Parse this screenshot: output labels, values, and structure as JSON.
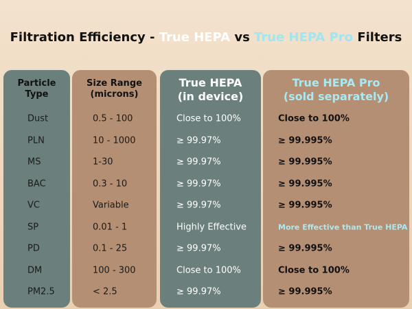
{
  "title": {
    "parts": [
      "Filtration Efficiency - ",
      "True HEPA",
      " vs ",
      "True HEPA Pro",
      " Filters"
    ]
  },
  "table": {
    "headers": [
      [
        "Particle",
        "Type"
      ],
      [
        "Size Range",
        "(microns)"
      ],
      [
        "True HEPA",
        "(in device)"
      ],
      [
        "True HEPA Pro",
        "(sold separately)"
      ]
    ],
    "rows": [
      [
        "Dust",
        "0.5 - 100",
        "Close to 100%",
        "Close to 100%"
      ],
      [
        "PLN",
        "10 - 1000",
        "≥ 99.97%",
        "≥ 99.995%"
      ],
      [
        "MS",
        "1-30",
        "≥ 99.97%",
        "≥ 99.995%"
      ],
      [
        "BAC",
        "0.3 - 10",
        "≥ 99.97%",
        "≥ 99.995%"
      ],
      [
        "VC",
        "Variable",
        "≥ 99.97%",
        "≥ 99.995%"
      ],
      [
        "SP",
        "0.01 - 1",
        "Highly Effective",
        "More Effective than True HEPA"
      ],
      [
        "PD",
        "0.1 - 25",
        "≥ 99.97%",
        "≥ 99.995%"
      ],
      [
        "DM",
        "100 - 300",
        "Close to 100%",
        "Close to 100%"
      ],
      [
        "PM2.5",
        "< 2.5",
        "≥ 99.97%",
        "≥ 99.995%"
      ]
    ]
  }
}
